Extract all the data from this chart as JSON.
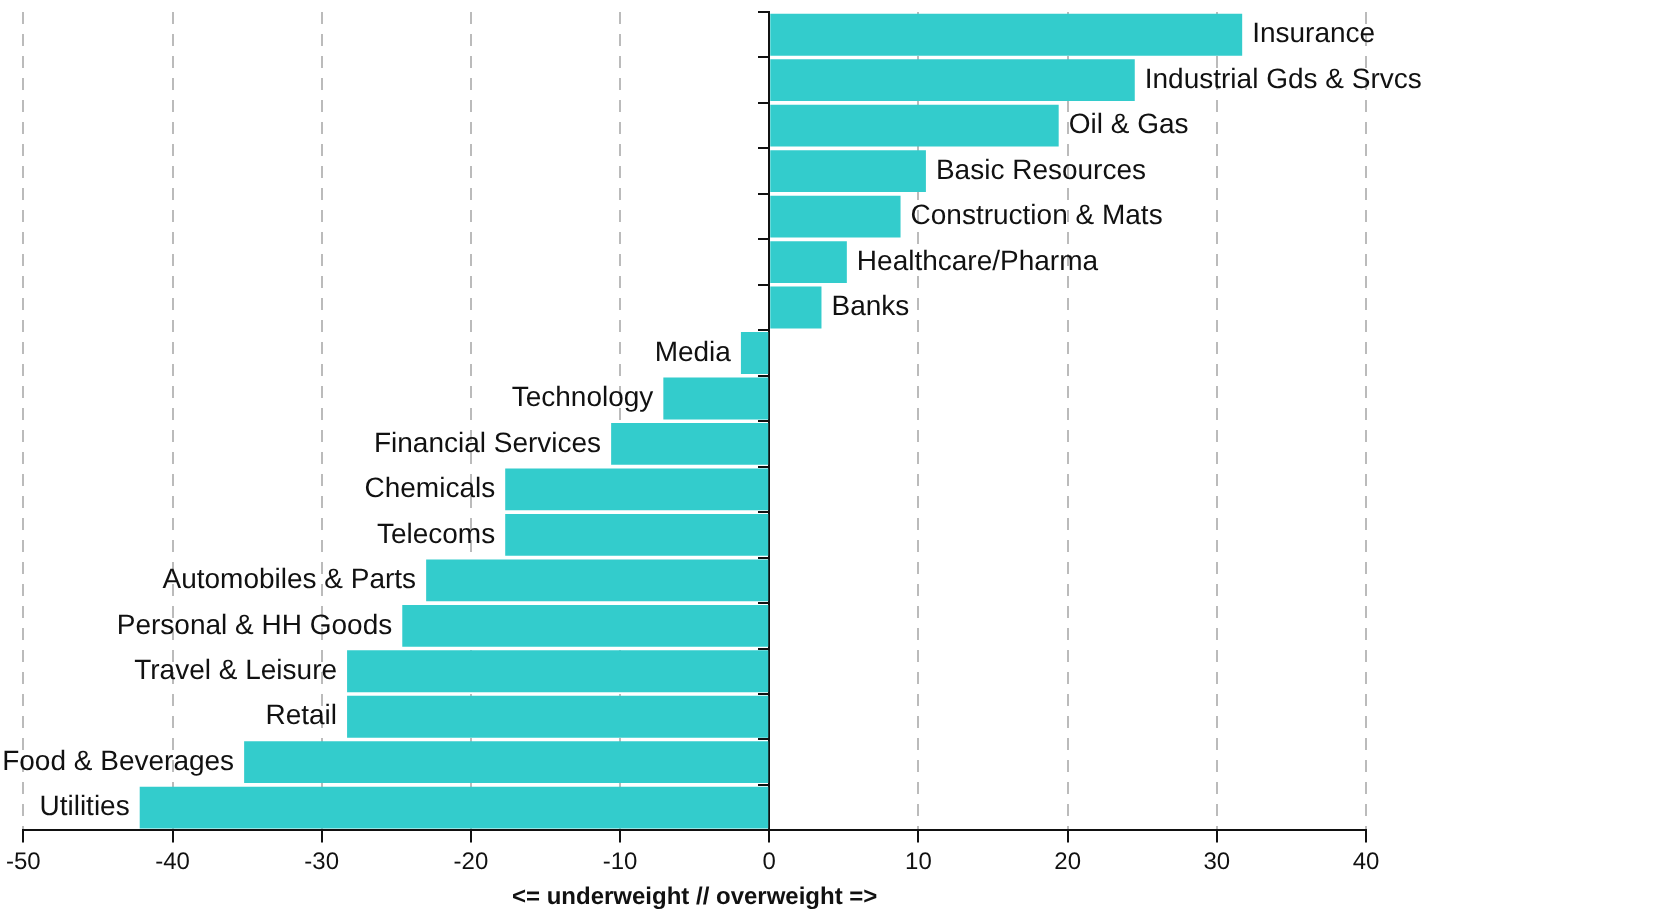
{
  "chart_data": {
    "type": "bar",
    "orientation": "horizontal",
    "xlabel": "<= underweight // overweight =>",
    "categories": [
      "Insurance",
      "Industrial Gds & Srvcs",
      "Oil & Gas",
      "Basic Resources",
      "Construction & Mats",
      "Healthcare/Pharma",
      "Banks",
      "Media",
      "Technology",
      "Financial Services",
      "Chemicals",
      "Telecoms",
      "Automobiles & Parts",
      "Personal & HH Goods",
      "Travel & Leisure",
      "Retail",
      "Food & Beverages",
      "Utilities"
    ],
    "values": [
      31.7,
      24.5,
      19.4,
      10.5,
      8.8,
      5.2,
      3.5,
      -1.9,
      -7.1,
      -10.6,
      -17.7,
      -17.7,
      -23.0,
      -24.6,
      -28.3,
      -28.3,
      -35.2,
      -42.2
    ],
    "color": "#33cccc",
    "xlim": [
      -50,
      40
    ],
    "xticks": [
      -50,
      -40,
      -30,
      -20,
      -10,
      0,
      10,
      20,
      30,
      40
    ],
    "grid": "x",
    "tick_labels": "x"
  }
}
